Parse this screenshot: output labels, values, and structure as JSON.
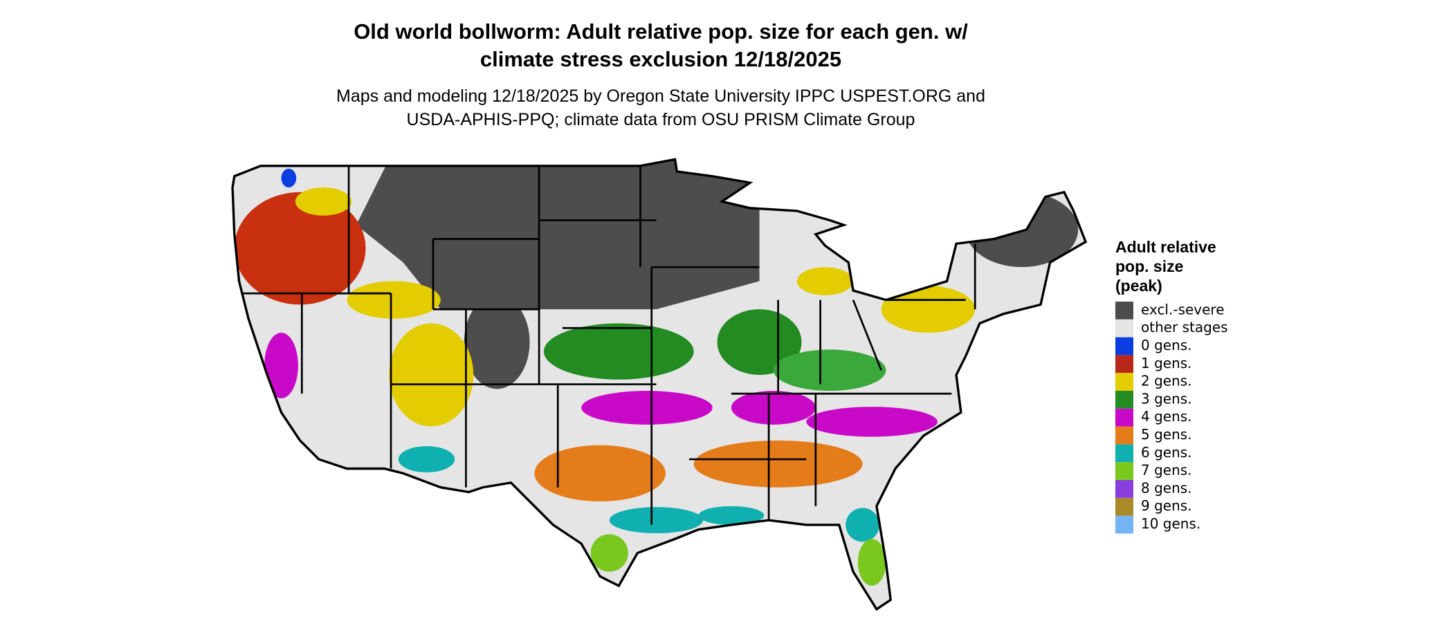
{
  "title": [
    "Old world bollworm: Adult relative pop. size for each gen. w/",
    "climate stress exclusion 12/18/2025"
  ],
  "subtitle": [
    "Maps and modeling 12/18/2025 by Oregon State University IPPC USPEST.ORG and",
    "USDA-APHIS-PPQ; climate data from OSU PRISM Climate Group"
  ],
  "legend": {
    "title": [
      "Adult relative",
      "pop. size",
      "(peak)"
    ],
    "items": [
      {
        "label": "excl.-severe",
        "color": "#4d4d4d"
      },
      {
        "label": "other stages",
        "color": "#e5e5e5"
      },
      {
        "label": "0 gens.",
        "color": "#0a3ee0"
      },
      {
        "label": "1 gens.",
        "color": "#b8281a"
      },
      {
        "label": "2 gens.",
        "color": "#e3cc00"
      },
      {
        "label": "3 gens.",
        "color": "#238b22"
      },
      {
        "label": "4 gens.",
        "color": "#c80ac8"
      },
      {
        "label": "5 gens.",
        "color": "#e47c1a"
      },
      {
        "label": "6 gens.",
        "color": "#10b0b0"
      },
      {
        "label": "7 gens.",
        "color": "#7ac81e"
      },
      {
        "label": "8 gens.",
        "color": "#8a3ee0"
      },
      {
        "label": "9 gens.",
        "color": "#a88a2a"
      },
      {
        "label": "10 gens.",
        "color": "#74b4f4"
      }
    ]
  }
}
